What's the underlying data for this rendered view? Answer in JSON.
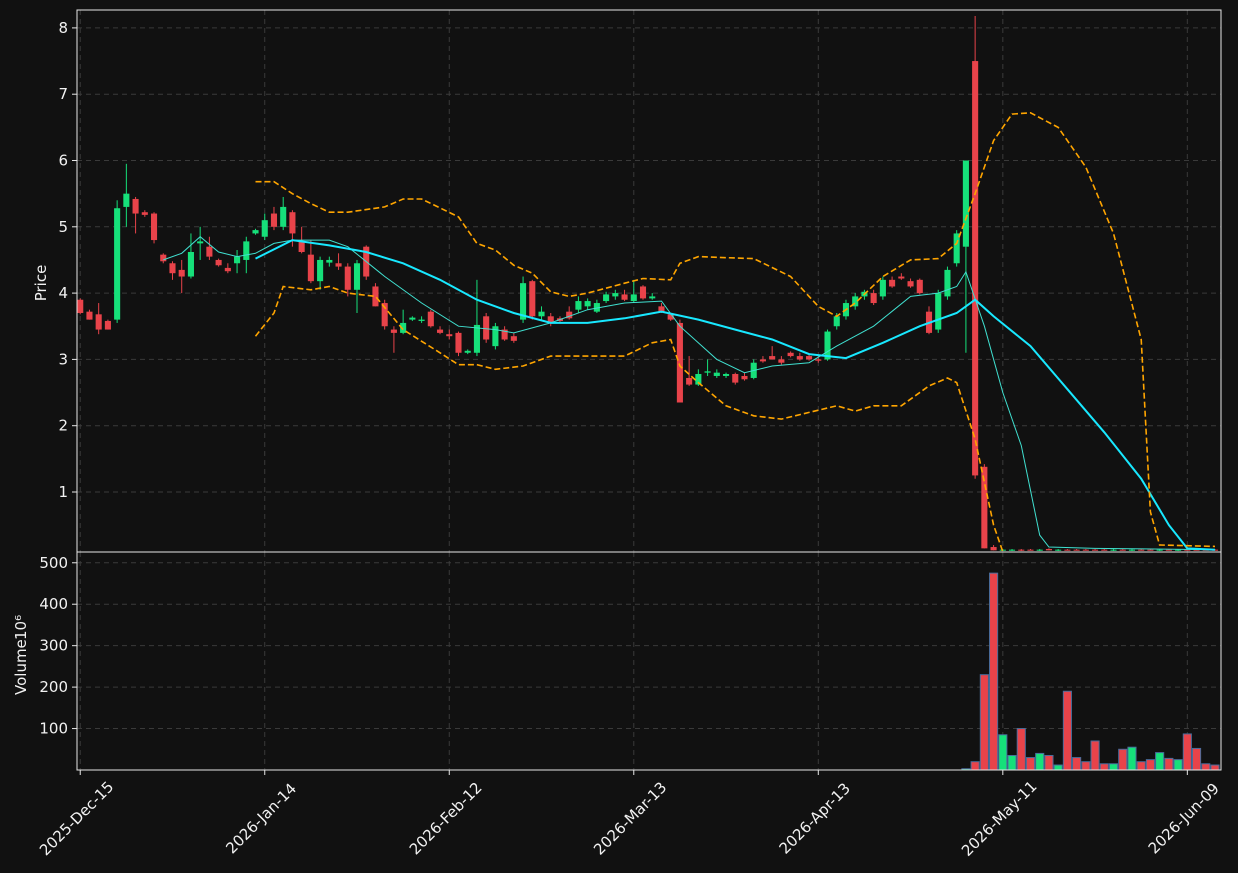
{
  "chart_data": [
    {
      "type": "candlestick",
      "ylabel": "Price",
      "ylim": [
        0.095,
        8.27
      ],
      "yticks": [
        1,
        2,
        3,
        4,
        5,
        6,
        7,
        8
      ],
      "grid": true,
      "up_color": "#16e07a",
      "down_color": "#e8434a",
      "open": [
        3.9,
        3.72,
        3.68,
        3.58,
        3.6,
        5.3,
        5.42,
        5.22,
        5.2,
        4.58,
        4.45,
        4.35,
        4.25,
        4.75,
        4.7,
        4.5,
        4.38,
        4.45,
        4.5,
        4.9,
        4.85,
        5.2,
        5.0,
        5.22,
        4.78,
        4.58,
        4.18,
        4.46,
        4.45,
        4.4,
        4.05,
        4.7,
        4.1,
        3.85,
        3.45,
        3.4,
        3.6,
        3.58,
        3.72,
        3.45,
        3.38,
        3.4,
        3.1,
        3.1,
        3.65,
        3.2,
        3.45,
        3.35,
        3.6,
        4.18,
        3.65,
        3.65,
        3.62,
        3.72,
        3.75,
        3.8,
        3.72,
        3.88,
        3.95,
        3.98,
        3.88,
        4.1,
        3.92,
        3.8,
        3.68,
        3.55,
        2.72,
        2.62,
        2.8,
        2.75,
        2.75,
        2.78,
        2.75,
        2.72,
        3.0,
        3.05,
        3.0,
        3.1,
        3.05,
        3.05,
        3.0,
        3.0,
        3.5,
        3.65,
        3.8,
        3.95,
        4.0,
        3.95,
        4.2,
        4.25,
        4.18,
        4.2,
        3.72,
        3.45,
        3.95,
        4.45,
        4.7,
        7.5,
        1.38,
        0.17,
        0.12,
        0.12,
        0.13,
        0.13,
        0.12,
        0.14,
        0.12,
        0.13,
        0.13,
        0.13,
        0.13,
        0.13,
        0.12,
        0.13,
        0.12,
        0.13,
        0.13,
        0.12,
        0.13,
        0.12,
        0.13,
        0.13,
        0.13,
        0.13
      ],
      "high": [
        3.92,
        3.75,
        3.85,
        3.6,
        5.4,
        5.95,
        5.45,
        5.25,
        5.22,
        4.6,
        4.48,
        4.5,
        4.9,
        5.0,
        4.85,
        4.52,
        4.45,
        4.65,
        4.85,
        4.97,
        5.2,
        5.3,
        5.45,
        5.25,
        5.0,
        4.8,
        4.55,
        4.55,
        4.6,
        4.45,
        4.5,
        4.72,
        4.15,
        3.9,
        3.5,
        3.75,
        3.65,
        3.65,
        3.75,
        3.5,
        3.45,
        3.42,
        3.15,
        4.2,
        3.7,
        3.55,
        3.5,
        3.4,
        4.25,
        4.2,
        3.8,
        3.7,
        3.65,
        3.8,
        3.95,
        3.92,
        3.9,
        4.02,
        4.05,
        4.05,
        4.2,
        4.12,
        4.0,
        3.85,
        3.7,
        3.6,
        3.05,
        2.85,
        3.0,
        2.85,
        2.8,
        2.8,
        2.8,
        3.0,
        3.05,
        3.2,
        3.05,
        3.12,
        3.1,
        3.08,
        3.05,
        3.45,
        3.7,
        3.9,
        4.0,
        4.05,
        4.05,
        4.25,
        4.25,
        4.3,
        4.22,
        4.22,
        3.8,
        4.05,
        4.4,
        4.95,
        6.0,
        8.18,
        1.42,
        0.2,
        0.14,
        0.14,
        0.14,
        0.14,
        0.14,
        0.15,
        0.14,
        0.14,
        0.14,
        0.14,
        0.14,
        0.14,
        0.14,
        0.14,
        0.14,
        0.14,
        0.14,
        0.14,
        0.14,
        0.14,
        0.14,
        0.14,
        0.14,
        0.14
      ],
      "low": [
        3.68,
        3.6,
        3.38,
        3.45,
        3.55,
        5.0,
        4.9,
        5.15,
        4.75,
        4.45,
        4.2,
        4.0,
        4.22,
        4.5,
        4.5,
        4.4,
        4.3,
        4.3,
        4.3,
        4.88,
        4.8,
        4.95,
        4.95,
        4.7,
        4.6,
        4.15,
        4.05,
        4.4,
        4.35,
        3.95,
        3.7,
        4.2,
        3.8,
        3.45,
        3.1,
        3.38,
        3.58,
        3.55,
        3.48,
        3.38,
        3.3,
        3.05,
        3.08,
        3.05,
        3.25,
        3.15,
        3.28,
        3.25,
        3.55,
        3.6,
        3.6,
        3.5,
        3.55,
        3.6,
        3.7,
        3.75,
        3.7,
        3.85,
        3.9,
        3.88,
        3.85,
        3.9,
        3.9,
        3.7,
        3.58,
        2.35,
        2.6,
        2.6,
        2.75,
        2.72,
        2.72,
        2.62,
        2.68,
        2.7,
        2.95,
        3.0,
        2.92,
        3.03,
        2.98,
        2.98,
        2.95,
        2.98,
        3.45,
        3.6,
        3.75,
        3.9,
        3.82,
        3.9,
        4.08,
        4.2,
        4.08,
        3.98,
        3.38,
        3.4,
        3.9,
        4.4,
        3.1,
        1.2,
        0.15,
        0.12,
        0.11,
        0.11,
        0.11,
        0.12,
        0.11,
        0.12,
        0.11,
        0.12,
        0.12,
        0.12,
        0.12,
        0.12,
        0.11,
        0.12,
        0.11,
        0.12,
        0.12,
        0.11,
        0.12,
        0.11,
        0.12,
        0.12,
        0.12,
        0.12
      ],
      "close": [
        3.7,
        3.6,
        3.45,
        3.45,
        5.28,
        5.5,
        5.2,
        5.18,
        4.8,
        4.48,
        4.3,
        4.25,
        4.62,
        4.78,
        4.55,
        4.42,
        4.33,
        4.55,
        4.78,
        4.95,
        5.1,
        5.0,
        5.3,
        4.9,
        4.62,
        4.18,
        4.5,
        4.5,
        4.4,
        4.05,
        4.45,
        4.25,
        3.8,
        3.5,
        3.4,
        3.55,
        3.63,
        3.6,
        3.5,
        3.4,
        3.35,
        3.1,
        3.13,
        3.52,
        3.3,
        3.5,
        3.3,
        3.28,
        4.15,
        3.65,
        3.72,
        3.55,
        3.58,
        3.62,
        3.88,
        3.88,
        3.85,
        3.98,
        4.0,
        3.9,
        3.98,
        3.92,
        3.95,
        3.72,
        3.6,
        2.35,
        2.62,
        2.78,
        2.82,
        2.8,
        2.78,
        2.65,
        2.7,
        2.95,
        2.97,
        3.0,
        2.95,
        3.05,
        3.0,
        3.0,
        2.98,
        3.42,
        3.65,
        3.85,
        3.95,
        4.02,
        3.85,
        4.2,
        4.1,
        4.22,
        4.1,
        4.0,
        3.4,
        4.0,
        4.35,
        4.9,
        6.0,
        1.25,
        0.15,
        0.12,
        0.13,
        0.13,
        0.12,
        0.12,
        0.13,
        0.12,
        0.13,
        0.12,
        0.12,
        0.12,
        0.12,
        0.12,
        0.13,
        0.12,
        0.13,
        0.12,
        0.12,
        0.13,
        0.12,
        0.13,
        0.12,
        0.12,
        0.12,
        0.12
      ],
      "series": [
        {
          "color": "#40e0d0",
          "width": 1,
          "style": "solid",
          "x": [
            9,
            11,
            13,
            15,
            17,
            19,
            21,
            23,
            27,
            29,
            33,
            37,
            41,
            45,
            47,
            51,
            55,
            59,
            63,
            65,
            69,
            72,
            75,
            79,
            82,
            86,
            90,
            93,
            95,
            96,
            98,
            100,
            102,
            104,
            105,
            110,
            123
          ],
          "values": [
            4.5,
            4.6,
            4.85,
            4.62,
            4.55,
            4.6,
            4.75,
            4.8,
            4.8,
            4.7,
            4.25,
            3.85,
            3.5,
            3.45,
            3.4,
            3.55,
            3.75,
            3.85,
            3.88,
            3.5,
            3.0,
            2.8,
            2.9,
            2.95,
            3.2,
            3.5,
            3.95,
            4.0,
            4.1,
            4.32,
            3.5,
            2.5,
            1.7,
            0.35,
            0.17,
            0.15,
            0.13
          ]
        },
        {
          "color": "#18e8ff",
          "width": 2,
          "style": "solid",
          "x": [
            19,
            23,
            27,
            31,
            35,
            39,
            43,
            47,
            51,
            55,
            59,
            63,
            67,
            71,
            75,
            79,
            83,
            87,
            91,
            95,
            97,
            99,
            103,
            107,
            111,
            115,
            118,
            120,
            123
          ],
          "values": [
            4.52,
            4.8,
            4.72,
            4.62,
            4.45,
            4.2,
            3.9,
            3.7,
            3.55,
            3.55,
            3.62,
            3.72,
            3.6,
            3.45,
            3.3,
            3.08,
            3.02,
            3.25,
            3.5,
            3.7,
            3.9,
            3.65,
            3.2,
            2.55,
            1.9,
            1.2,
            0.5,
            0.15,
            0.13
          ]
        },
        {
          "color": "#ffa500",
          "width": 1.6,
          "style": "dashed",
          "x": [
            19,
            21,
            23,
            25,
            27,
            29,
            33,
            35,
            37,
            41,
            43,
            45,
            47,
            49,
            51,
            53,
            55,
            59,
            61,
            64,
            65,
            67,
            71,
            73,
            77,
            80,
            82,
            84,
            87,
            90,
            93,
            95,
            97,
            99,
            101,
            103,
            106,
            109,
            112,
            115,
            116,
            117,
            123
          ],
          "values": [
            5.68,
            5.68,
            5.5,
            5.35,
            5.22,
            5.22,
            5.3,
            5.42,
            5.42,
            5.15,
            4.75,
            4.65,
            4.42,
            4.3,
            4.02,
            3.95,
            4.0,
            4.15,
            4.22,
            4.2,
            4.45,
            4.55,
            4.53,
            4.52,
            4.25,
            3.8,
            3.65,
            3.85,
            4.25,
            4.5,
            4.52,
            4.75,
            5.5,
            6.3,
            6.7,
            6.72,
            6.5,
            5.9,
            4.9,
            3.3,
            0.7,
            0.2,
            0.18
          ]
        },
        {
          "color": "#ffa500",
          "width": 1.6,
          "style": "dashed",
          "x": [
            19,
            21,
            22,
            25,
            27,
            29,
            32,
            35,
            39,
            41,
            43,
            45,
            48,
            51,
            55,
            59,
            62,
            64,
            65,
            67,
            70,
            73,
            76,
            79,
            82,
            84,
            86,
            89,
            92,
            94,
            95,
            97,
            99,
            100
          ],
          "values": [
            3.35,
            3.7,
            4.1,
            4.05,
            4.1,
            4.0,
            3.95,
            3.45,
            3.1,
            2.92,
            2.92,
            2.85,
            2.9,
            3.05,
            3.05,
            3.05,
            3.25,
            3.3,
            2.9,
            2.65,
            2.3,
            2.15,
            2.1,
            2.2,
            2.3,
            2.22,
            2.3,
            2.3,
            2.6,
            2.72,
            2.65,
            1.8,
            0.5,
            0.1
          ]
        }
      ]
    },
    {
      "type": "bar",
      "ylabel": "Volume",
      "scale_label": "10⁶",
      "ylim": [
        0,
        526
      ],
      "yticks": [
        100,
        200,
        300,
        400,
        500
      ],
      "grid": true,
      "edge_color": "#4a6d9c",
      "values": [
        0,
        0,
        0,
        0,
        0,
        0,
        0,
        0,
        0,
        0,
        0,
        0,
        0,
        0,
        0,
        0,
        0,
        0,
        0,
        0,
        0,
        0,
        0,
        0,
        0,
        0,
        0,
        0,
        0,
        0,
        0,
        0,
        0,
        0,
        0,
        0,
        0,
        0,
        0,
        0,
        0,
        0,
        0,
        0,
        0,
        0,
        0,
        0,
        0,
        0,
        0,
        0,
        0,
        0,
        0,
        0,
        0,
        0,
        0,
        0,
        0,
        0,
        0,
        0,
        0,
        0,
        0,
        0,
        0,
        0,
        0,
        0,
        0,
        0,
        0,
        0,
        0,
        0,
        0,
        0,
        0,
        0,
        0,
        0,
        0,
        0,
        0,
        0,
        0,
        0,
        0,
        0,
        0,
        0,
        0,
        0,
        3,
        20,
        230,
        475,
        85,
        35,
        100,
        30,
        40,
        35,
        12,
        190,
        30,
        20,
        70,
        15,
        15,
        50,
        55,
        20,
        25,
        42,
        28,
        25,
        87,
        52,
        15,
        12
      ],
      "xlim": [
        -0.35,
        123.65
      ],
      "xticks": [
        {
          "value": 0,
          "label": "2025-Dec-15"
        },
        {
          "value": 20,
          "label": "2026-Jan-14"
        },
        {
          "value": 40,
          "label": "2026-Feb-12"
        },
        {
          "value": 60,
          "label": "2026-Mar-13"
        },
        {
          "value": 80,
          "label": "2026-Apr-13"
        },
        {
          "value": 100,
          "label": "2026-May-11"
        },
        {
          "value": 120,
          "label": "2026-Jun-09"
        }
      ]
    }
  ]
}
